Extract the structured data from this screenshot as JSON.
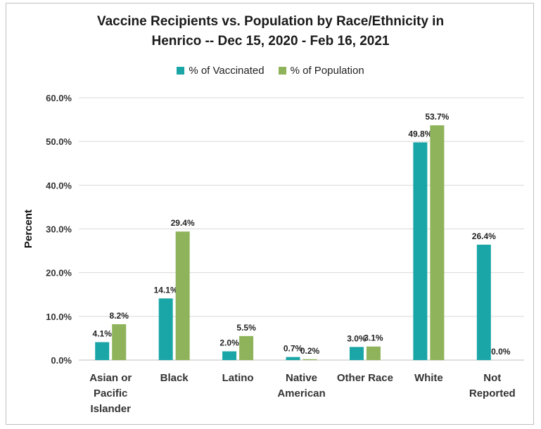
{
  "chart_data": {
    "type": "bar",
    "title_lines": [
      "Vaccine Recipients vs. Population by Race/Ethnicity in",
      "Henrico -- Dec 15, 2020 - Feb 16, 2021"
    ],
    "xlabel": "",
    "ylabel": "Percent",
    "ylim": [
      0,
      60
    ],
    "yticks": [
      0,
      10,
      20,
      30,
      40,
      50,
      60
    ],
    "ytick_labels": [
      "0.0%",
      "10.0%",
      "20.0%",
      "30.0%",
      "40.0%",
      "50.0%",
      "60.0%"
    ],
    "grid": true,
    "legend_position": "top-center",
    "categories": [
      [
        "Asian or",
        "Pacific",
        "Islander"
      ],
      [
        "Black"
      ],
      [
        "Latino"
      ],
      [
        "Native",
        "American"
      ],
      [
        "Other Race"
      ],
      [
        "White"
      ],
      [
        "Not",
        "Reported"
      ]
    ],
    "series": [
      {
        "name": "% of Vaccinated",
        "color": "#1aa6a6",
        "values": [
          4.1,
          14.1,
          2.0,
          0.7,
          3.0,
          49.8,
          26.4
        ],
        "labels": [
          "4.1%",
          "14.1%",
          "2.0%",
          "0.7%",
          "3.0%",
          "49.8%",
          "26.4%"
        ]
      },
      {
        "name": "% of Population",
        "color": "#8fb35a",
        "values": [
          8.2,
          29.4,
          5.5,
          0.2,
          3.1,
          53.7,
          0.0
        ],
        "labels": [
          "8.2%",
          "29.4%",
          "5.5%",
          "0.2%",
          "3.1%",
          "53.7%",
          "0.0%"
        ]
      }
    ]
  }
}
